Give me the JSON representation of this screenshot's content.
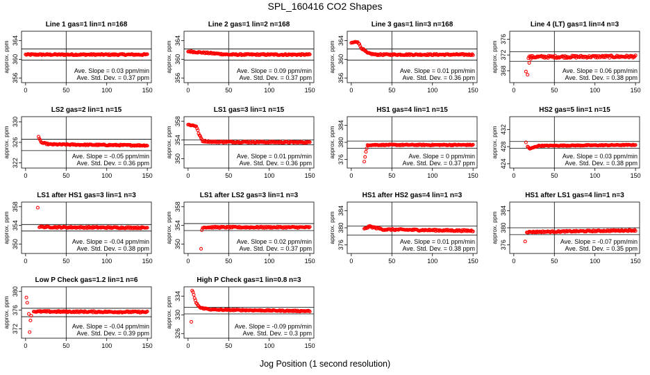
{
  "page": {
    "title": "SPL_160416  CO2 Shapes",
    "xlabel": "Jog Position (1 second resolution)"
  },
  "colors": {
    "points": "#ff0000",
    "axis": "#000000"
  },
  "chart_data": [
    {
      "type": "scatter",
      "title": "Line 1 gas=1 lin=1 n=168",
      "ylabel": "approx. ppm",
      "xlim": [
        -5,
        155
      ],
      "ylim": [
        355,
        366
      ],
      "xticks": [
        0,
        50,
        100,
        150
      ],
      "yticks": [
        356,
        360,
        364
      ],
      "vline": 50,
      "hlines": [
        362.2,
        359.8
      ],
      "series": [
        {
          "start_x": 0,
          "shape": [
            [
              0,
              361.0
            ],
            [
              150,
              361.0
            ]
          ],
          "noise": 0.15,
          "spikes": []
        }
      ],
      "slope_text": "Ave. Slope = 0.03  ppm/min",
      "std_text": "Ave. Std. Dev. = 0.37  ppm"
    },
    {
      "type": "scatter",
      "title": "Line 2 gas=1 lin=2 n=168",
      "ylabel": "approx. ppm",
      "xlim": [
        -5,
        155
      ],
      "ylim": [
        355,
        366
      ],
      "xticks": [
        0,
        50,
        100,
        150
      ],
      "yticks": [
        356,
        360,
        364
      ],
      "vline": 50,
      "hlines": [
        362.2,
        359.8
      ],
      "series": [
        {
          "start_x": 0,
          "shape": [
            [
              0,
              361.7
            ],
            [
              20,
              361.4
            ],
            [
              50,
              361.0
            ],
            [
              150,
              361.0
            ]
          ],
          "noise": 0.15,
          "spikes": []
        }
      ],
      "slope_text": "Ave. Slope = 0.09  ppm/min",
      "std_text": "Ave. Std. Dev. = 0.37  ppm"
    },
    {
      "type": "scatter",
      "title": "Line 3 gas=1 lin=3 n=168",
      "ylabel": "approx. ppm",
      "xlim": [
        -5,
        155
      ],
      "ylim": [
        355,
        366
      ],
      "xticks": [
        0,
        50,
        100,
        150
      ],
      "yticks": [
        356,
        360,
        364
      ],
      "vline": 50,
      "hlines": [
        362.2,
        359.8
      ],
      "series": [
        {
          "start_x": 0,
          "shape": [
            [
              0,
              363.5
            ],
            [
              8,
              363.8
            ],
            [
              12,
              362.5
            ],
            [
              20,
              361.3
            ],
            [
              30,
              361.0
            ],
            [
              150,
              361.0
            ]
          ],
          "noise": 0.15,
          "spikes": []
        }
      ],
      "slope_text": "Ave. Slope = 0.01  ppm/min",
      "std_text": "Ave. Std. Dev. = 0.36  ppm"
    },
    {
      "type": "scatter",
      "title": "Line 4 (LT) gas=1 lin=4 n=3",
      "ylabel": "approx. ppm",
      "xlim": [
        -5,
        155
      ],
      "ylim": [
        365,
        378
      ],
      "xticks": [
        0,
        50,
        100,
        150
      ],
      "yticks": [
        368,
        372,
        376
      ],
      "vline": 50,
      "hlines": [
        372.8,
        370.4
      ],
      "series": [
        {
          "start_x": 18,
          "shape": [
            [
              18,
              371.5
            ],
            [
              150,
              371.6
            ]
          ],
          "noise": 0.3,
          "spikes": [
            [
              15,
              367.8
            ],
            [
              17,
              367.0
            ],
            [
              19,
              370.0
            ],
            [
              21,
              371.0
            ]
          ]
        }
      ],
      "slope_text": "Ave. Slope = 0.06  ppm/min",
      "std_text": "Ave. Std. Dev. = 0.38  ppm"
    },
    {
      "type": "scatter",
      "title": "LS2 gas=2 lin=1 n=15",
      "ylabel": "approx. ppm",
      "xlim": [
        -5,
        155
      ],
      "ylim": [
        321,
        331
      ],
      "xticks": [
        0,
        50,
        100,
        150
      ],
      "yticks": [
        322,
        326,
        330
      ],
      "vline": 50,
      "hlines": [
        326.6,
        324.4
      ],
      "series": [
        {
          "start_x": 17,
          "shape": [
            [
              17,
              326.6
            ],
            [
              20,
              325.9
            ],
            [
              30,
              325.6
            ],
            [
              150,
              325.4
            ]
          ],
          "noise": 0.12,
          "spikes": [
            [
              16,
              327.1
            ]
          ]
        }
      ],
      "slope_text": "Ave. Slope = -0.05  ppm/min",
      "std_text": "Ave. Std. Dev. = 0.36  ppm"
    },
    {
      "type": "scatter",
      "title": "LS1 gas=3 lin=1 n=15",
      "ylabel": "approx. ppm",
      "xlim": [
        -5,
        155
      ],
      "ylim": [
        348,
        359
      ],
      "xticks": [
        0,
        50,
        100,
        150
      ],
      "yticks": [
        350,
        354,
        358
      ],
      "vline": 50,
      "hlines": [
        354.0,
        353.0
      ],
      "series": [
        {
          "start_x": 0,
          "shape": [
            [
              0,
              357.3
            ],
            [
              10,
              357.0
            ],
            [
              14,
              355.0
            ],
            [
              18,
              353.8
            ],
            [
              30,
              353.6
            ],
            [
              150,
              353.5
            ]
          ],
          "noise": 0.15,
          "spikes": []
        }
      ],
      "slope_text": "Ave. Slope = 0.01  ppm/min",
      "std_text": "Ave. Std. Dev. = 0.36  ppm"
    },
    {
      "type": "scatter",
      "title": "HS1 gas=4 lin=1 n=15",
      "ylabel": "approx. ppm",
      "xlim": [
        -5,
        155
      ],
      "ylim": [
        374,
        386
      ],
      "xticks": [
        0,
        50,
        100,
        150
      ],
      "yticks": [
        376,
        380,
        384
      ],
      "vline": 50,
      "hlines": [
        380.3,
        378.6
      ],
      "series": [
        {
          "start_x": 20,
          "shape": [
            [
              20,
              379.4
            ],
            [
              150,
              379.4
            ]
          ],
          "noise": 0.12,
          "spikes": [
            [
              16,
              375.5
            ],
            [
              17,
              376.6
            ],
            [
              18,
              377.8
            ],
            [
              19,
              378.6
            ]
          ]
        }
      ],
      "slope_text": "Ave. Slope = 0  ppm/min",
      "std_text": "Ave. Std. Dev. = 0.37  ppm"
    },
    {
      "type": "scatter",
      "title": "HS2 gas=5 lin=1 n=15",
      "ylabel": "approx. ppm",
      "xlim": [
        -5,
        155
      ],
      "ylim": [
        423,
        435
      ],
      "xticks": [
        0,
        50,
        100,
        150
      ],
      "yticks": [
        424,
        428,
        432
      ],
      "vline": 50,
      "hlines": [
        429.2,
        427.6
      ],
      "series": [
        {
          "start_x": 17,
          "shape": [
            [
              17,
              428.0
            ],
            [
              20,
              427.5
            ],
            [
              30,
              428.2
            ],
            [
              150,
              428.4
            ]
          ],
          "noise": 0.1,
          "spikes": [
            [
              15,
              429.0
            ]
          ]
        }
      ],
      "slope_text": "Ave. Slope = 0.03  ppm/min",
      "std_text": "Ave. Std. Dev. = 0.38  ppm"
    },
    {
      "type": "scatter",
      "title": "LS1 after HS1 gas=3 lin=1 n=3",
      "ylabel": "approx. ppm",
      "xlim": [
        -5,
        155
      ],
      "ylim": [
        348,
        359
      ],
      "xticks": [
        0,
        50,
        100,
        150
      ],
      "yticks": [
        350,
        354,
        358
      ],
      "vline": 50,
      "hlines": [
        354.2,
        352.8
      ],
      "series": [
        {
          "start_x": 17,
          "shape": [
            [
              17,
              353.7
            ],
            [
              40,
              353.6
            ],
            [
              150,
              353.5
            ]
          ],
          "noise": 0.15,
          "spikes": [
            [
              15,
              357.8
            ]
          ]
        }
      ],
      "slope_text": "Ave. Slope = -0.04  ppm/min",
      "std_text": "Ave. Std. Dev. = 0.38  ppm"
    },
    {
      "type": "scatter",
      "title": "LS1 after LS2 gas=3 lin=1 n=3",
      "ylabel": "approx. ppm",
      "xlim": [
        -5,
        155
      ],
      "ylim": [
        348,
        359
      ],
      "xticks": [
        0,
        50,
        100,
        150
      ],
      "yticks": [
        350,
        354,
        358
      ],
      "vline": 50,
      "hlines": [
        354.4,
        352.9
      ],
      "series": [
        {
          "start_x": 18,
          "shape": [
            [
              18,
              353.6
            ],
            [
              150,
              353.6
            ]
          ],
          "noise": 0.15,
          "spikes": [
            [
              16,
              349.0
            ],
            [
              17,
              353.0
            ]
          ]
        }
      ],
      "slope_text": "Ave. Slope = 0.02  ppm/min",
      "std_text": "Ave. Std. Dev. = 0.37  ppm"
    },
    {
      "type": "scatter",
      "title": "HS1 after HS2 gas=4 lin=1 n=3",
      "ylabel": "approx. ppm",
      "xlim": [
        -5,
        155
      ],
      "ylim": [
        374,
        386
      ],
      "xticks": [
        0,
        50,
        100,
        150
      ],
      "yticks": [
        376,
        380,
        384
      ],
      "vline": 50,
      "hlines": [
        380.4,
        378.3
      ],
      "series": [
        {
          "start_x": 16,
          "shape": [
            [
              16,
              379.7
            ],
            [
              22,
              380.3
            ],
            [
              40,
              379.6
            ],
            [
              150,
              379.3
            ]
          ],
          "noise": 0.18,
          "spikes": []
        }
      ],
      "slope_text": "Ave. Slope = 0.01  ppm/min",
      "std_text": "Ave. Std. Dev. = 0.38  ppm"
    },
    {
      "type": "scatter",
      "title": "HS1 after LS1 gas=4 lin=1 n=3",
      "ylabel": "approx. ppm",
      "xlim": [
        -5,
        155
      ],
      "ylim": [
        374,
        386
      ],
      "xticks": [
        0,
        50,
        100,
        150
      ],
      "yticks": [
        376,
        380,
        384
      ],
      "vline": 50,
      "hlines": [
        380.0,
        378.4
      ],
      "series": [
        {
          "start_x": 16,
          "shape": [
            [
              16,
              379.0
            ],
            [
              150,
              379.4
            ]
          ],
          "noise": 0.15,
          "spikes": [
            [
              14,
              376.8
            ]
          ]
        }
      ],
      "slope_text": "Ave. Slope = -0.07  ppm/min",
      "std_text": "Ave. Std. Dev. = 0.35  ppm"
    },
    {
      "type": "scatter",
      "title": "Low P Check gas=1.2 lin=1 n=6",
      "ylabel": "approx. ppm",
      "xlim": [
        -5,
        155
      ],
      "ylim": [
        370,
        381
      ],
      "xticks": [
        0,
        50,
        100,
        150
      ],
      "yticks": [
        372,
        376,
        380
      ],
      "vline": 50,
      "hlines": [
        376.4,
        374.6
      ],
      "series": [
        {
          "start_x": 10,
          "shape": [
            [
              10,
              375.7
            ],
            [
              150,
              375.6
            ]
          ],
          "noise": 0.15,
          "spikes": [
            [
              1,
              378.7
            ],
            [
              2,
              377.6
            ],
            [
              4,
              375.2
            ],
            [
              6,
              373.8
            ],
            [
              7,
              374.8
            ],
            [
              5,
              371.3
            ]
          ]
        }
      ],
      "slope_text": "Ave. Slope = -0.04  ppm/min",
      "std_text": "Ave. Std. Dev. = 0.39  ppm"
    },
    {
      "type": "scatter",
      "title": "High P Check gas=1 lin=0.8 n=3",
      "ylabel": "approx. ppm",
      "xlim": [
        -5,
        155
      ],
      "ylim": [
        325,
        336
      ],
      "xticks": [
        0,
        50,
        100,
        150
      ],
      "yticks": [
        326,
        330,
        334
      ],
      "vline": 50,
      "hlines": [
        331.6,
        330.2
      ],
      "series": [
        {
          "start_x": 6,
          "shape": [
            [
              6,
              334.8
            ],
            [
              10,
              332.5
            ],
            [
              15,
              331.5
            ],
            [
              30,
              331.1
            ],
            [
              150,
              330.8
            ]
          ],
          "noise": 0.12,
          "spikes": [
            [
              4,
              328.5
            ],
            [
              5,
              335.2
            ]
          ]
        }
      ],
      "slope_text": "Ave. Slope = -0.09  ppm/min",
      "std_text": "Ave. Std. Dev. = 0.3  ppm"
    }
  ]
}
